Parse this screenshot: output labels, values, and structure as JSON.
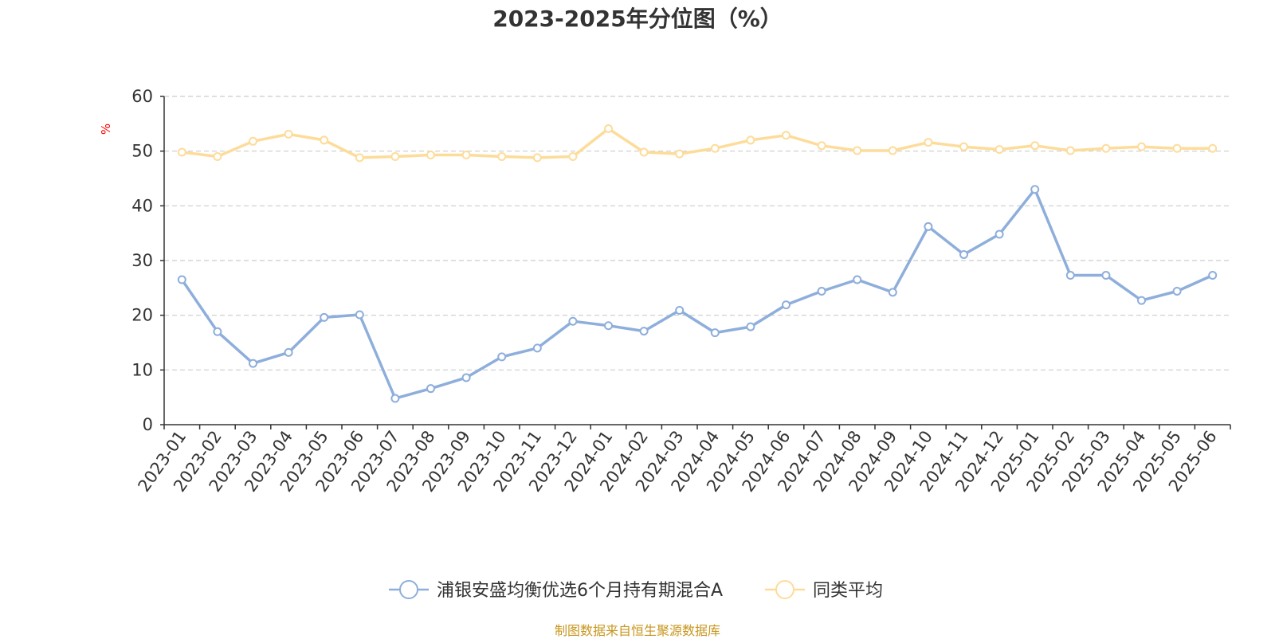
{
  "chart_data": {
    "type": "line",
    "title": "2023-2025年分位图（%）",
    "ylabel": "%",
    "xlabel": "",
    "ylim": [
      0,
      60
    ],
    "yticks": [
      0,
      10,
      20,
      30,
      40,
      50,
      60
    ],
    "grid": true,
    "legend_position": "bottom",
    "categories": [
      "2023-01",
      "2023-02",
      "2023-03",
      "2023-04",
      "2023-05",
      "2023-06",
      "2023-07",
      "2023-08",
      "2023-09",
      "2023-10",
      "2023-11",
      "2023-12",
      "2024-01",
      "2024-02",
      "2024-03",
      "2024-04",
      "2024-05",
      "2024-06",
      "2024-07",
      "2024-08",
      "2024-09",
      "2024-10",
      "2024-11",
      "2024-12",
      "2025-01",
      "2025-02",
      "2025-03",
      "2025-04",
      "2025-05",
      "2025-06"
    ],
    "series": [
      {
        "name": "浦银安盛均衡优选6个月持有期混合A",
        "color": "#8eaedb",
        "values": [
          26.5,
          17.0,
          11.2,
          13.2,
          19.6,
          20.1,
          4.8,
          6.6,
          8.6,
          12.4,
          14.0,
          18.9,
          18.1,
          17.1,
          20.9,
          16.8,
          17.9,
          21.9,
          24.4,
          26.5,
          24.2,
          36.2,
          31.1,
          34.8,
          43.0,
          27.3,
          27.3,
          22.7,
          24.4,
          27.3
        ]
      },
      {
        "name": "同类平均",
        "color": "#fddc9a",
        "values": [
          49.8,
          49.0,
          51.8,
          53.1,
          52.0,
          48.8,
          49.0,
          49.3,
          49.3,
          49.0,
          48.8,
          49.0,
          54.1,
          49.8,
          49.5,
          50.5,
          52.0,
          52.9,
          51.0,
          50.1,
          50.1,
          51.6,
          50.8,
          50.3,
          51.0,
          50.1,
          50.5,
          50.8,
          50.5,
          50.5
        ]
      }
    ]
  },
  "source_note": "制图数据来自恒生聚源数据库"
}
